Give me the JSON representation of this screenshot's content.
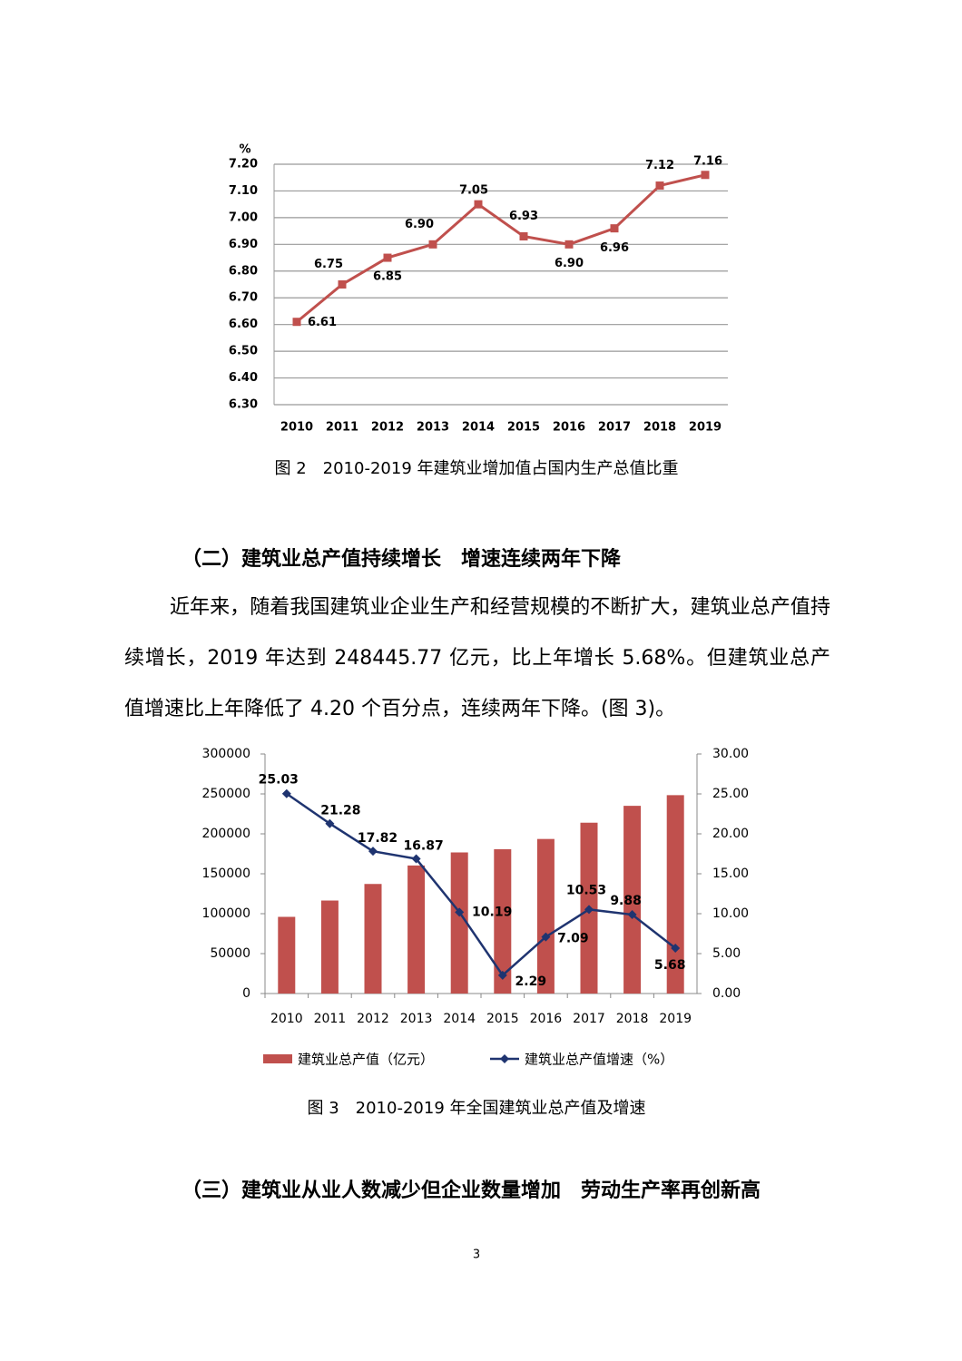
{
  "chart_data": [
    {
      "type": "line",
      "caption": "图 2　2010-2019 年建筑业增加值占国内生产总值比重",
      "y_label": "%",
      "categories": [
        "2010",
        "2011",
        "2012",
        "2013",
        "2014",
        "2015",
        "2016",
        "2017",
        "2018",
        "2019"
      ],
      "values": [
        6.61,
        6.75,
        6.85,
        6.9,
        7.05,
        6.93,
        6.9,
        6.96,
        7.12,
        7.16
      ],
      "value_labels": [
        "6.61",
        "6.75",
        "6.85",
        "6.90",
        "7.05",
        "6.93",
        "6.90",
        "6.96",
        "7.12",
        "7.16"
      ],
      "color": "#c0504d",
      "ylim": [
        6.3,
        7.2
      ],
      "yticks": [
        {
          "value": 6.3,
          "label": "6.30"
        },
        {
          "value": 6.4,
          "label": "6.40"
        },
        {
          "value": 6.5,
          "label": "6.50"
        },
        {
          "value": 6.6,
          "label": "6.60"
        },
        {
          "value": 6.7,
          "label": "6.70"
        },
        {
          "value": 6.8,
          "label": "6.80"
        },
        {
          "value": 6.9,
          "label": "6.90"
        },
        {
          "value": 7.0,
          "label": "7.00"
        },
        {
          "value": 7.1,
          "label": "7.10"
        },
        {
          "value": 7.2,
          "label": "7.20"
        }
      ],
      "grid": true
    },
    {
      "type": "combo",
      "caption": "图 3　2010-2019 年全国建筑业总产值及增速",
      "categories": [
        "2010",
        "2011",
        "2012",
        "2013",
        "2014",
        "2015",
        "2016",
        "2017",
        "2018",
        "2019"
      ],
      "series": [
        {
          "name": "建筑业总产值（亿元）",
          "type": "bar",
          "color": "#c0504d",
          "values": [
            96031,
            116463,
            137218,
            160366,
            176713,
            180757,
            193567,
            213944,
            235086,
            248445.77
          ]
        },
        {
          "name": "建筑业总产值增速（%）",
          "type": "line",
          "axis": "y2",
          "color": "#1f3470",
          "values": [
            25.03,
            21.28,
            17.82,
            16.87,
            10.19,
            2.29,
            7.09,
            10.53,
            9.88,
            5.68
          ]
        }
      ],
      "ylim": [
        0,
        300000
      ],
      "yticks": [
        0,
        50000,
        100000,
        150000,
        200000,
        250000,
        300000
      ],
      "y2lim": [
        0,
        30
      ],
      "y2ticks": [
        {
          "value": 0,
          "label": "0.00"
        },
        {
          "value": 5,
          "label": "5.00"
        },
        {
          "value": 10,
          "label": "10.00"
        },
        {
          "value": 15,
          "label": "15.00"
        },
        {
          "value": 20,
          "label": "20.00"
        },
        {
          "value": 25,
          "label": "25.00"
        },
        {
          "value": 30,
          "label": "30.00"
        }
      ],
      "legend": "bottom"
    }
  ],
  "heading_2": "（二）建筑业总产值持续增长　增速连续两年下降",
  "paragraph": "近年来，随着我国建筑业企业生产和经营规模的不断扩大，建筑业总产值持续增长，2019 年达到 248445.77 亿元，比上年增长 5.68%。但建筑业总产值增速比上年降低了 4.20 个百分点，连续两年下降。(图 3)。",
  "heading_3": "（三）建筑业从业人数减少但企业数量增加　劳动生产率再创新高",
  "page_number": "3"
}
